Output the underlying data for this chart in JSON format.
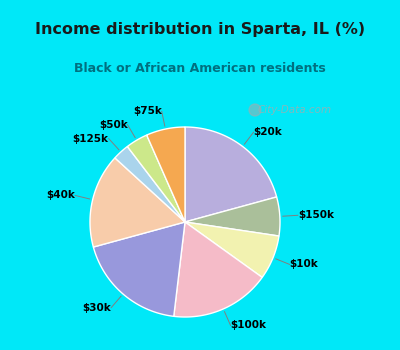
{
  "title": "Income distribution in Sparta, IL (%)",
  "subtitle": "Black or African American residents",
  "labels": [
    "$20k",
    "$150k",
    "$10k",
    "$100k",
    "$30k",
    "$40k",
    "$125k",
    "$50k",
    "$75k"
  ],
  "sizes": [
    22,
    7,
    8,
    18,
    20,
    17,
    3,
    4,
    7
  ],
  "colors": [
    "#b8aedd",
    "#aabf9a",
    "#f2f2b0",
    "#f5bbc8",
    "#9898dc",
    "#f8ccaa",
    "#aad4ec",
    "#cce88a",
    "#f5a850"
  ],
  "bg_cyan": "#00e8f8",
  "bg_chart": "#d0eee0",
  "title_color": "#1a1a1a",
  "subtitle_color": "#007080",
  "watermark": "City-Data.com",
  "start_angle": 90
}
